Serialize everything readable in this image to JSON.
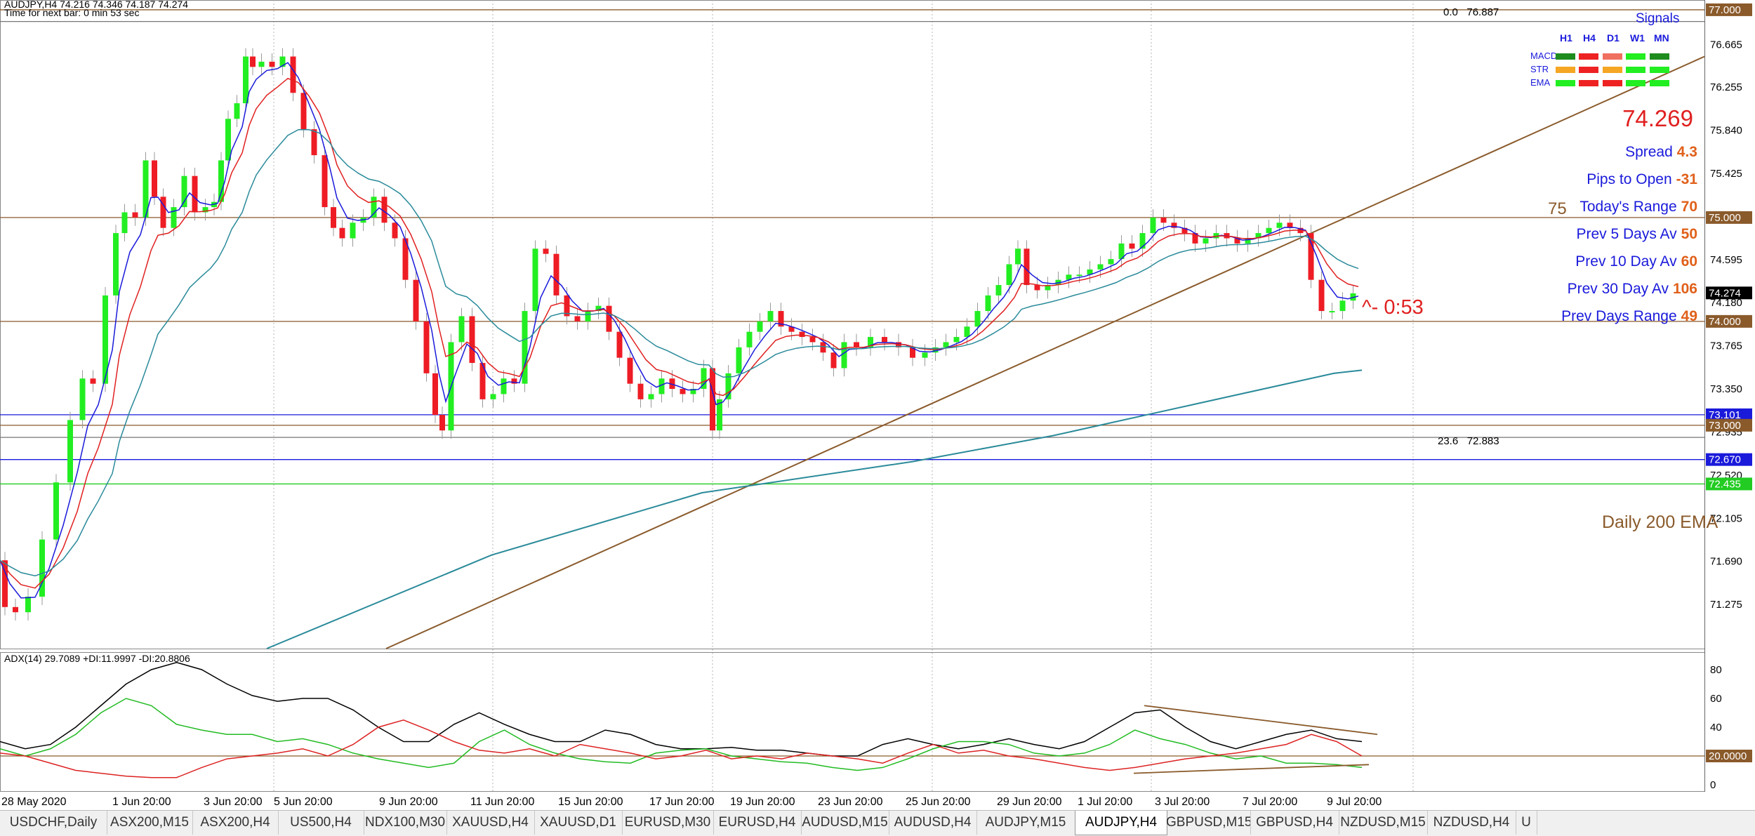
{
  "chart_header": {
    "symbol_line": "AUDJPY,H4  74.216 74.346 74.187 74.274",
    "timer_line": "Time for next bar: 0 min 53 sec"
  },
  "indicator_header": "ADX(14) 29.7089 +DI:11.9997 -DI:20.8806",
  "price_axis": [
    "77.000",
    "76.665",
    "76.255",
    "75.840",
    "75.425",
    "75.010",
    "74.595",
    "74.180",
    "73.765",
    "73.350",
    "72.935",
    "72.520",
    "72.105",
    "71.690",
    "71.275"
  ],
  "price_tags": [
    {
      "text": "77.000",
      "price": 77.0,
      "color": "#8a5a2b"
    },
    {
      "text": "75.000",
      "price": 75.0,
      "color": "#8a5a2b"
    },
    {
      "text": "74.274",
      "price": 74.274,
      "color": "#000000"
    },
    {
      "text": "74.000",
      "price": 74.0,
      "color": "#8a5a2b"
    },
    {
      "text": "73.101",
      "price": 73.101,
      "color": "#1a1adb"
    },
    {
      "text": "73.000",
      "price": 73.0,
      "color": "#8a5a2b"
    },
    {
      "text": "72.670",
      "price": 72.67,
      "color": "#1a1adb"
    },
    {
      "text": "72.435",
      "price": 72.435,
      "color": "#22cc22"
    }
  ],
  "adx_axis": [
    "80",
    "60",
    "40",
    "20",
    "0"
  ],
  "adx_tag": "20.0000",
  "time_axis": [
    "28 May 2020",
    "1 Jun 20:00",
    "3 Jun 20:00",
    "5 Jun 20:00",
    "9 Jun 20:00",
    "11 Jun 20:00",
    "15 Jun 20:00",
    "17 Jun 20:00",
    "19 Jun 20:00",
    "23 Jun 20:00",
    "25 Jun 20:00",
    "29 Jun 20:00",
    "1 Jul 20:00",
    "3 Jul 20:00",
    "7 Jul 20:00",
    "9 Jul 20:00"
  ],
  "fib_top": {
    "level": "0.0",
    "price": "76.887"
  },
  "fib_mid": {
    "level": "23.6",
    "price": "72.883"
  },
  "last_price": "74.269",
  "bar_timer": "^- 0:53",
  "daily_ema_label": "Daily 200 EMA",
  "range_marker": "75",
  "signals": {
    "title": "Signals",
    "timeframes": [
      "H1",
      "H4",
      "D1",
      "W1",
      "MN"
    ],
    "rows": [
      {
        "name": "MACD",
        "colors": [
          "#1e8c1e",
          "#ee2222",
          "#f07060",
          "#22ee22",
          "#1e8c1e"
        ]
      },
      {
        "name": "STR",
        "colors": [
          "#f5a623",
          "#ee2222",
          "#f5a623",
          "#22ee22",
          "#22ee22"
        ]
      },
      {
        "name": "EMA",
        "colors": [
          "#22ee22",
          "#ee2222",
          "#ee2222",
          "#22ee22",
          "#22ee22"
        ]
      }
    ]
  },
  "stats": [
    {
      "label": "Spread",
      "value": "4.3"
    },
    {
      "label": "Pips to Open",
      "value": "-31"
    },
    {
      "label": "Today's Range",
      "value": "70"
    },
    {
      "label": "Prev 5 Days Av",
      "value": "50"
    },
    {
      "label": "Prev 10 Day Av",
      "value": "60"
    },
    {
      "label": "Prev 30 Day Av",
      "value": "106"
    },
    {
      "label": "Prev Days Range",
      "value": "49"
    }
  ],
  "tabs": [
    {
      "label": "USDCHF,Daily",
      "active": false
    },
    {
      "label": "ASX200,M15",
      "active": false
    },
    {
      "label": "ASX200,H4",
      "active": false
    },
    {
      "label": "US500,H4",
      "active": false
    },
    {
      "label": "NDX100,M30",
      "active": false
    },
    {
      "label": "XAUUSD,H4",
      "active": false
    },
    {
      "label": "XAUUSD,D1",
      "active": false
    },
    {
      "label": "EURUSD,M30",
      "active": false
    },
    {
      "label": "EURUSD,H4",
      "active": false
    },
    {
      "label": "AUDUSD,M15",
      "active": false
    },
    {
      "label": "AUDUSD,H4",
      "active": false
    },
    {
      "label": "AUDJPY,M15",
      "active": false
    },
    {
      "label": "AUDJPY,H4",
      "active": true
    },
    {
      "label": "GBPUSD,M15",
      "active": false
    },
    {
      "label": "GBPUSD,H4",
      "active": false
    },
    {
      "label": "NZDUSD,M15",
      "active": false
    },
    {
      "label": "NZDUSD,H4",
      "active": false
    },
    {
      "label": "U",
      "active": false
    }
  ],
  "price_series": [
    [
      0,
      71.7
    ],
    [
      14,
      71.25
    ],
    [
      30,
      71.2
    ],
    [
      50,
      71.35
    ],
    [
      70,
      71.9
    ],
    [
      90,
      72.45
    ],
    [
      110,
      73.05
    ],
    [
      125,
      73.45
    ],
    [
      140,
      73.4
    ],
    [
      160,
      74.25
    ],
    [
      170,
      74.85
    ],
    [
      185,
      75.05
    ],
    [
      200,
      75.0
    ],
    [
      215,
      75.55
    ],
    [
      225,
      75.2
    ],
    [
      240,
      74.9
    ],
    [
      255,
      75.1
    ],
    [
      270,
      75.4
    ],
    [
      285,
      75.05
    ],
    [
      300,
      75.1
    ],
    [
      310,
      75.15
    ],
    [
      320,
      75.55
    ],
    [
      330,
      75.95
    ],
    [
      345,
      76.1
    ],
    [
      355,
      76.55
    ],
    [
      365,
      76.45
    ],
    [
      380,
      76.5
    ],
    [
      395,
      76.45
    ],
    [
      410,
      76.55
    ],
    [
      425,
      76.2
    ],
    [
      440,
      75.85
    ],
    [
      455,
      75.6
    ],
    [
      470,
      75.1
    ],
    [
      480,
      74.9
    ],
    [
      495,
      74.8
    ],
    [
      510,
      74.95
    ],
    [
      525,
      75.0
    ],
    [
      540,
      75.2
    ],
    [
      555,
      74.95
    ],
    [
      570,
      74.8
    ],
    [
      585,
      74.4
    ],
    [
      600,
      74.0
    ],
    [
      615,
      73.5
    ],
    [
      625,
      73.1
    ],
    [
      635,
      72.95
    ],
    [
      650,
      73.8
    ],
    [
      665,
      74.05
    ],
    [
      680,
      73.6
    ],
    [
      695,
      73.25
    ],
    [
      710,
      73.3
    ],
    [
      725,
      73.45
    ],
    [
      740,
      73.4
    ],
    [
      755,
      74.1
    ],
    [
      770,
      74.7
    ],
    [
      785,
      74.65
    ],
    [
      800,
      74.25
    ],
    [
      815,
      74.05
    ],
    [
      830,
      74.0
    ],
    [
      845,
      74.1
    ],
    [
      860,
      74.15
    ],
    [
      875,
      73.9
    ],
    [
      890,
      73.65
    ],
    [
      905,
      73.4
    ],
    [
      920,
      73.25
    ],
    [
      935,
      73.3
    ],
    [
      950,
      73.45
    ],
    [
      965,
      73.35
    ],
    [
      980,
      73.3
    ],
    [
      995,
      73.35
    ],
    [
      1010,
      73.55
    ],
    [
      1020,
      72.95
    ],
    [
      1030,
      73.25
    ],
    [
      1045,
      73.5
    ],
    [
      1060,
      73.75
    ],
    [
      1075,
      73.9
    ],
    [
      1090,
      74.0
    ],
    [
      1105,
      74.1
    ],
    [
      1120,
      73.95
    ],
    [
      1135,
      73.9
    ],
    [
      1150,
      73.85
    ],
    [
      1165,
      73.8
    ],
    [
      1180,
      73.7
    ],
    [
      1195,
      73.55
    ],
    [
      1210,
      73.8
    ],
    [
      1230,
      73.75
    ],
    [
      1250,
      73.85
    ],
    [
      1270,
      73.8
    ],
    [
      1290,
      73.75
    ],
    [
      1310,
      73.65
    ],
    [
      1325,
      73.7
    ],
    [
      1340,
      73.75
    ],
    [
      1355,
      73.8
    ],
    [
      1370,
      73.85
    ],
    [
      1385,
      73.95
    ],
    [
      1400,
      74.1
    ],
    [
      1415,
      74.25
    ],
    [
      1430,
      74.35
    ],
    [
      1445,
      74.55
    ],
    [
      1455,
      74.7
    ],
    [
      1470,
      74.35
    ],
    [
      1485,
      74.3
    ],
    [
      1500,
      74.35
    ],
    [
      1515,
      74.4
    ],
    [
      1530,
      74.45
    ],
    [
      1545,
      74.45
    ],
    [
      1560,
      74.5
    ],
    [
      1575,
      74.55
    ],
    [
      1590,
      74.6
    ],
    [
      1605,
      74.75
    ],
    [
      1620,
      74.7
    ],
    [
      1635,
      74.85
    ],
    [
      1650,
      75.0
    ],
    [
      1665,
      74.95
    ],
    [
      1680,
      74.9
    ],
    [
      1695,
      74.85
    ],
    [
      1710,
      74.75
    ],
    [
      1725,
      74.8
    ],
    [
      1740,
      74.85
    ],
    [
      1755,
      74.8
    ],
    [
      1770,
      74.75
    ],
    [
      1785,
      74.8
    ],
    [
      1800,
      74.85
    ],
    [
      1815,
      74.9
    ],
    [
      1830,
      74.95
    ],
    [
      1845,
      74.9
    ],
    [
      1860,
      74.85
    ],
    [
      1875,
      74.4
    ],
    [
      1890,
      74.1
    ],
    [
      1905,
      74.1
    ],
    [
      1920,
      74.2
    ],
    [
      1935,
      74.27
    ]
  ]
}
